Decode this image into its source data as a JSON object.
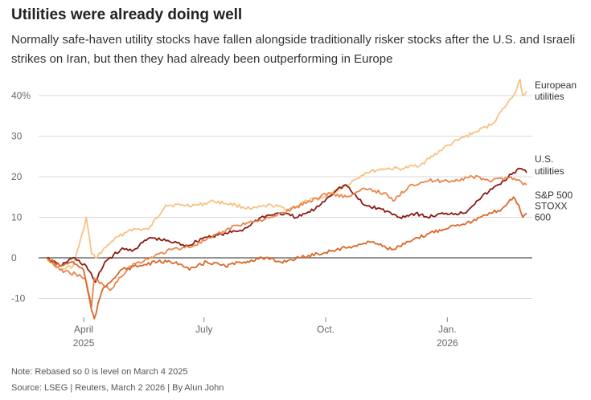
{
  "header": {
    "title": "Utilities were already doing well",
    "subtitle": "Normally safe-haven utility stocks have fallen alongside traditionally risker stocks after the U.S. and Israeli strikes on Iran, but then they had already been outperforming in Europe"
  },
  "footer": {
    "note": "Note: Rebased so 0 is level on March 4 2025",
    "source": "Source: LSEG | Reuters, March 2 2026 | By Alun John"
  },
  "chart_data": {
    "type": "line",
    "title": "Utilities were already doing well",
    "xlabel": "",
    "ylabel": "",
    "ylim": [
      -15,
      45
    ],
    "yticks": [
      {
        "value": 40,
        "label": "40%"
      },
      {
        "value": 30,
        "label": "30"
      },
      {
        "value": 20,
        "label": "20"
      },
      {
        "value": 10,
        "label": "10"
      },
      {
        "value": 0,
        "label": "0"
      },
      {
        "value": -10,
        "label": "-10"
      }
    ],
    "xdomain": [
      "2025-03-04",
      "2026-03-02"
    ],
    "xticks": [
      {
        "date": "2025-04-01",
        "label": "April",
        "sublabel": "2025"
      },
      {
        "date": "2025-07-01",
        "label": "July",
        "sublabel": ""
      },
      {
        "date": "2025-10-01",
        "label": "Oct.",
        "sublabel": ""
      },
      {
        "date": "2026-01-01",
        "label": "Jan.",
        "sublabel": "2026"
      }
    ],
    "grid": true,
    "series": [
      {
        "name": "European utilities",
        "label_lines": [
          "European",
          "utilities"
        ],
        "color": "#f7c285",
        "points": [
          [
            "2025-03-04",
            0
          ],
          [
            "2025-03-14",
            -3
          ],
          [
            "2025-03-24",
            -2
          ],
          [
            "2025-04-01",
            7
          ],
          [
            "2025-04-03",
            10
          ],
          [
            "2025-04-07",
            1
          ],
          [
            "2025-04-10",
            0
          ],
          [
            "2025-04-22",
            4
          ],
          [
            "2025-05-06",
            7
          ],
          [
            "2025-05-20",
            7
          ],
          [
            "2025-06-02",
            13
          ],
          [
            "2025-06-13",
            13
          ],
          [
            "2025-06-27",
            13
          ],
          [
            "2025-07-08",
            14
          ],
          [
            "2025-07-25",
            13
          ],
          [
            "2025-08-06",
            12
          ],
          [
            "2025-08-21",
            13
          ],
          [
            "2025-09-03",
            12
          ],
          [
            "2025-09-17",
            14
          ],
          [
            "2025-10-01",
            15
          ],
          [
            "2025-10-17",
            18
          ],
          [
            "2025-10-31",
            21
          ],
          [
            "2025-11-14",
            22
          ],
          [
            "2025-11-28",
            22
          ],
          [
            "2025-12-12",
            23
          ],
          [
            "2025-12-29",
            27
          ],
          [
            "2026-01-09",
            29
          ],
          [
            "2026-01-22",
            31
          ],
          [
            "2026-02-04",
            33
          ],
          [
            "2026-02-13",
            37
          ],
          [
            "2026-02-20",
            40
          ],
          [
            "2026-02-25",
            44
          ],
          [
            "2026-02-27",
            40
          ],
          [
            "2026-03-02",
            41
          ]
        ]
      },
      {
        "name": "U.S. utilities",
        "label_lines": [
          "U.S.",
          "utilities"
        ],
        "color": "#8b1a14",
        "points": [
          [
            "2025-03-04",
            0
          ],
          [
            "2025-03-14",
            -2
          ],
          [
            "2025-03-24",
            0
          ],
          [
            "2025-04-03",
            -2
          ],
          [
            "2025-04-08",
            -5
          ],
          [
            "2025-04-10",
            -6
          ],
          [
            "2025-04-17",
            -1
          ],
          [
            "2025-04-29",
            2
          ],
          [
            "2025-05-09",
            2
          ],
          [
            "2025-05-21",
            5
          ],
          [
            "2025-06-05",
            4
          ],
          [
            "2025-06-19",
            3
          ],
          [
            "2025-07-01",
            5
          ],
          [
            "2025-07-18",
            6
          ],
          [
            "2025-07-31",
            7
          ],
          [
            "2025-08-13",
            10
          ],
          [
            "2025-08-27",
            11
          ],
          [
            "2025-09-10",
            10
          ],
          [
            "2025-09-23",
            12
          ],
          [
            "2025-10-03",
            15
          ],
          [
            "2025-10-10",
            17
          ],
          [
            "2025-10-16",
            18
          ],
          [
            "2025-10-30",
            13
          ],
          [
            "2025-11-12",
            12
          ],
          [
            "2025-11-26",
            10
          ],
          [
            "2025-12-08",
            11
          ],
          [
            "2025-12-17",
            10
          ],
          [
            "2025-12-31",
            11
          ],
          [
            "2026-01-14",
            11
          ],
          [
            "2026-01-23",
            14
          ],
          [
            "2026-02-04",
            17
          ],
          [
            "2026-02-13",
            19
          ],
          [
            "2026-02-20",
            21
          ],
          [
            "2026-02-25",
            22
          ],
          [
            "2026-03-02",
            21
          ]
        ]
      },
      {
        "name": "S&P 500",
        "label_lines": [
          "S&P 500"
        ],
        "color": "#e8864c",
        "points": [
          [
            "2025-03-04",
            0
          ],
          [
            "2025-03-14",
            -3
          ],
          [
            "2025-03-26",
            -4
          ],
          [
            "2025-04-02",
            -5
          ],
          [
            "2025-04-07",
            -12
          ],
          [
            "2025-04-09",
            -5
          ],
          [
            "2025-04-21",
            -8
          ],
          [
            "2025-05-06",
            -2
          ],
          [
            "2025-05-21",
            0
          ],
          [
            "2025-06-06",
            2
          ],
          [
            "2025-06-23",
            3
          ],
          [
            "2025-07-07",
            5
          ],
          [
            "2025-07-25",
            8
          ],
          [
            "2025-08-08",
            9
          ],
          [
            "2025-08-22",
            10
          ],
          [
            "2025-09-05",
            12
          ],
          [
            "2025-09-19",
            14
          ],
          [
            "2025-10-03",
            16
          ],
          [
            "2025-10-17",
            15
          ],
          [
            "2025-10-31",
            17
          ],
          [
            "2025-11-14",
            16
          ],
          [
            "2025-11-21",
            14
          ],
          [
            "2025-12-04",
            18
          ],
          [
            "2025-12-18",
            19
          ],
          [
            "2026-01-05",
            19
          ],
          [
            "2026-01-20",
            20
          ],
          [
            "2026-02-04",
            19
          ],
          [
            "2026-02-18",
            20
          ],
          [
            "2026-03-02",
            18
          ]
        ]
      },
      {
        "name": "STOXX 600",
        "label_lines": [
          "STOXX",
          "600"
        ],
        "color": "#d9682a",
        "points": [
          [
            "2025-03-04",
            0
          ],
          [
            "2025-03-14",
            -2
          ],
          [
            "2025-03-24",
            -1
          ],
          [
            "2025-04-01",
            -3
          ],
          [
            "2025-04-07",
            -13
          ],
          [
            "2025-04-09",
            -15
          ],
          [
            "2025-04-15",
            -8
          ],
          [
            "2025-04-29",
            -3
          ],
          [
            "2025-05-13",
            -2
          ],
          [
            "2025-05-27",
            -1
          ],
          [
            "2025-06-10",
            -1
          ],
          [
            "2025-06-20",
            -3
          ],
          [
            "2025-07-03",
            -1
          ],
          [
            "2025-07-17",
            -2
          ],
          [
            "2025-07-31",
            -1
          ],
          [
            "2025-08-14",
            0
          ],
          [
            "2025-08-28",
            -1
          ],
          [
            "2025-09-11",
            0
          ],
          [
            "2025-09-25",
            1
          ],
          [
            "2025-10-09",
            2
          ],
          [
            "2025-10-23",
            3
          ],
          [
            "2025-11-06",
            4
          ],
          [
            "2025-11-20",
            2
          ],
          [
            "2025-12-04",
            4
          ],
          [
            "2025-12-18",
            6
          ],
          [
            "2026-01-06",
            8
          ],
          [
            "2026-01-20",
            9
          ],
          [
            "2026-02-03",
            11
          ],
          [
            "2026-02-11",
            12
          ],
          [
            "2026-02-20",
            15
          ],
          [
            "2026-02-24",
            13
          ],
          [
            "2026-02-27",
            10
          ],
          [
            "2026-03-02",
            11
          ]
        ]
      }
    ]
  }
}
